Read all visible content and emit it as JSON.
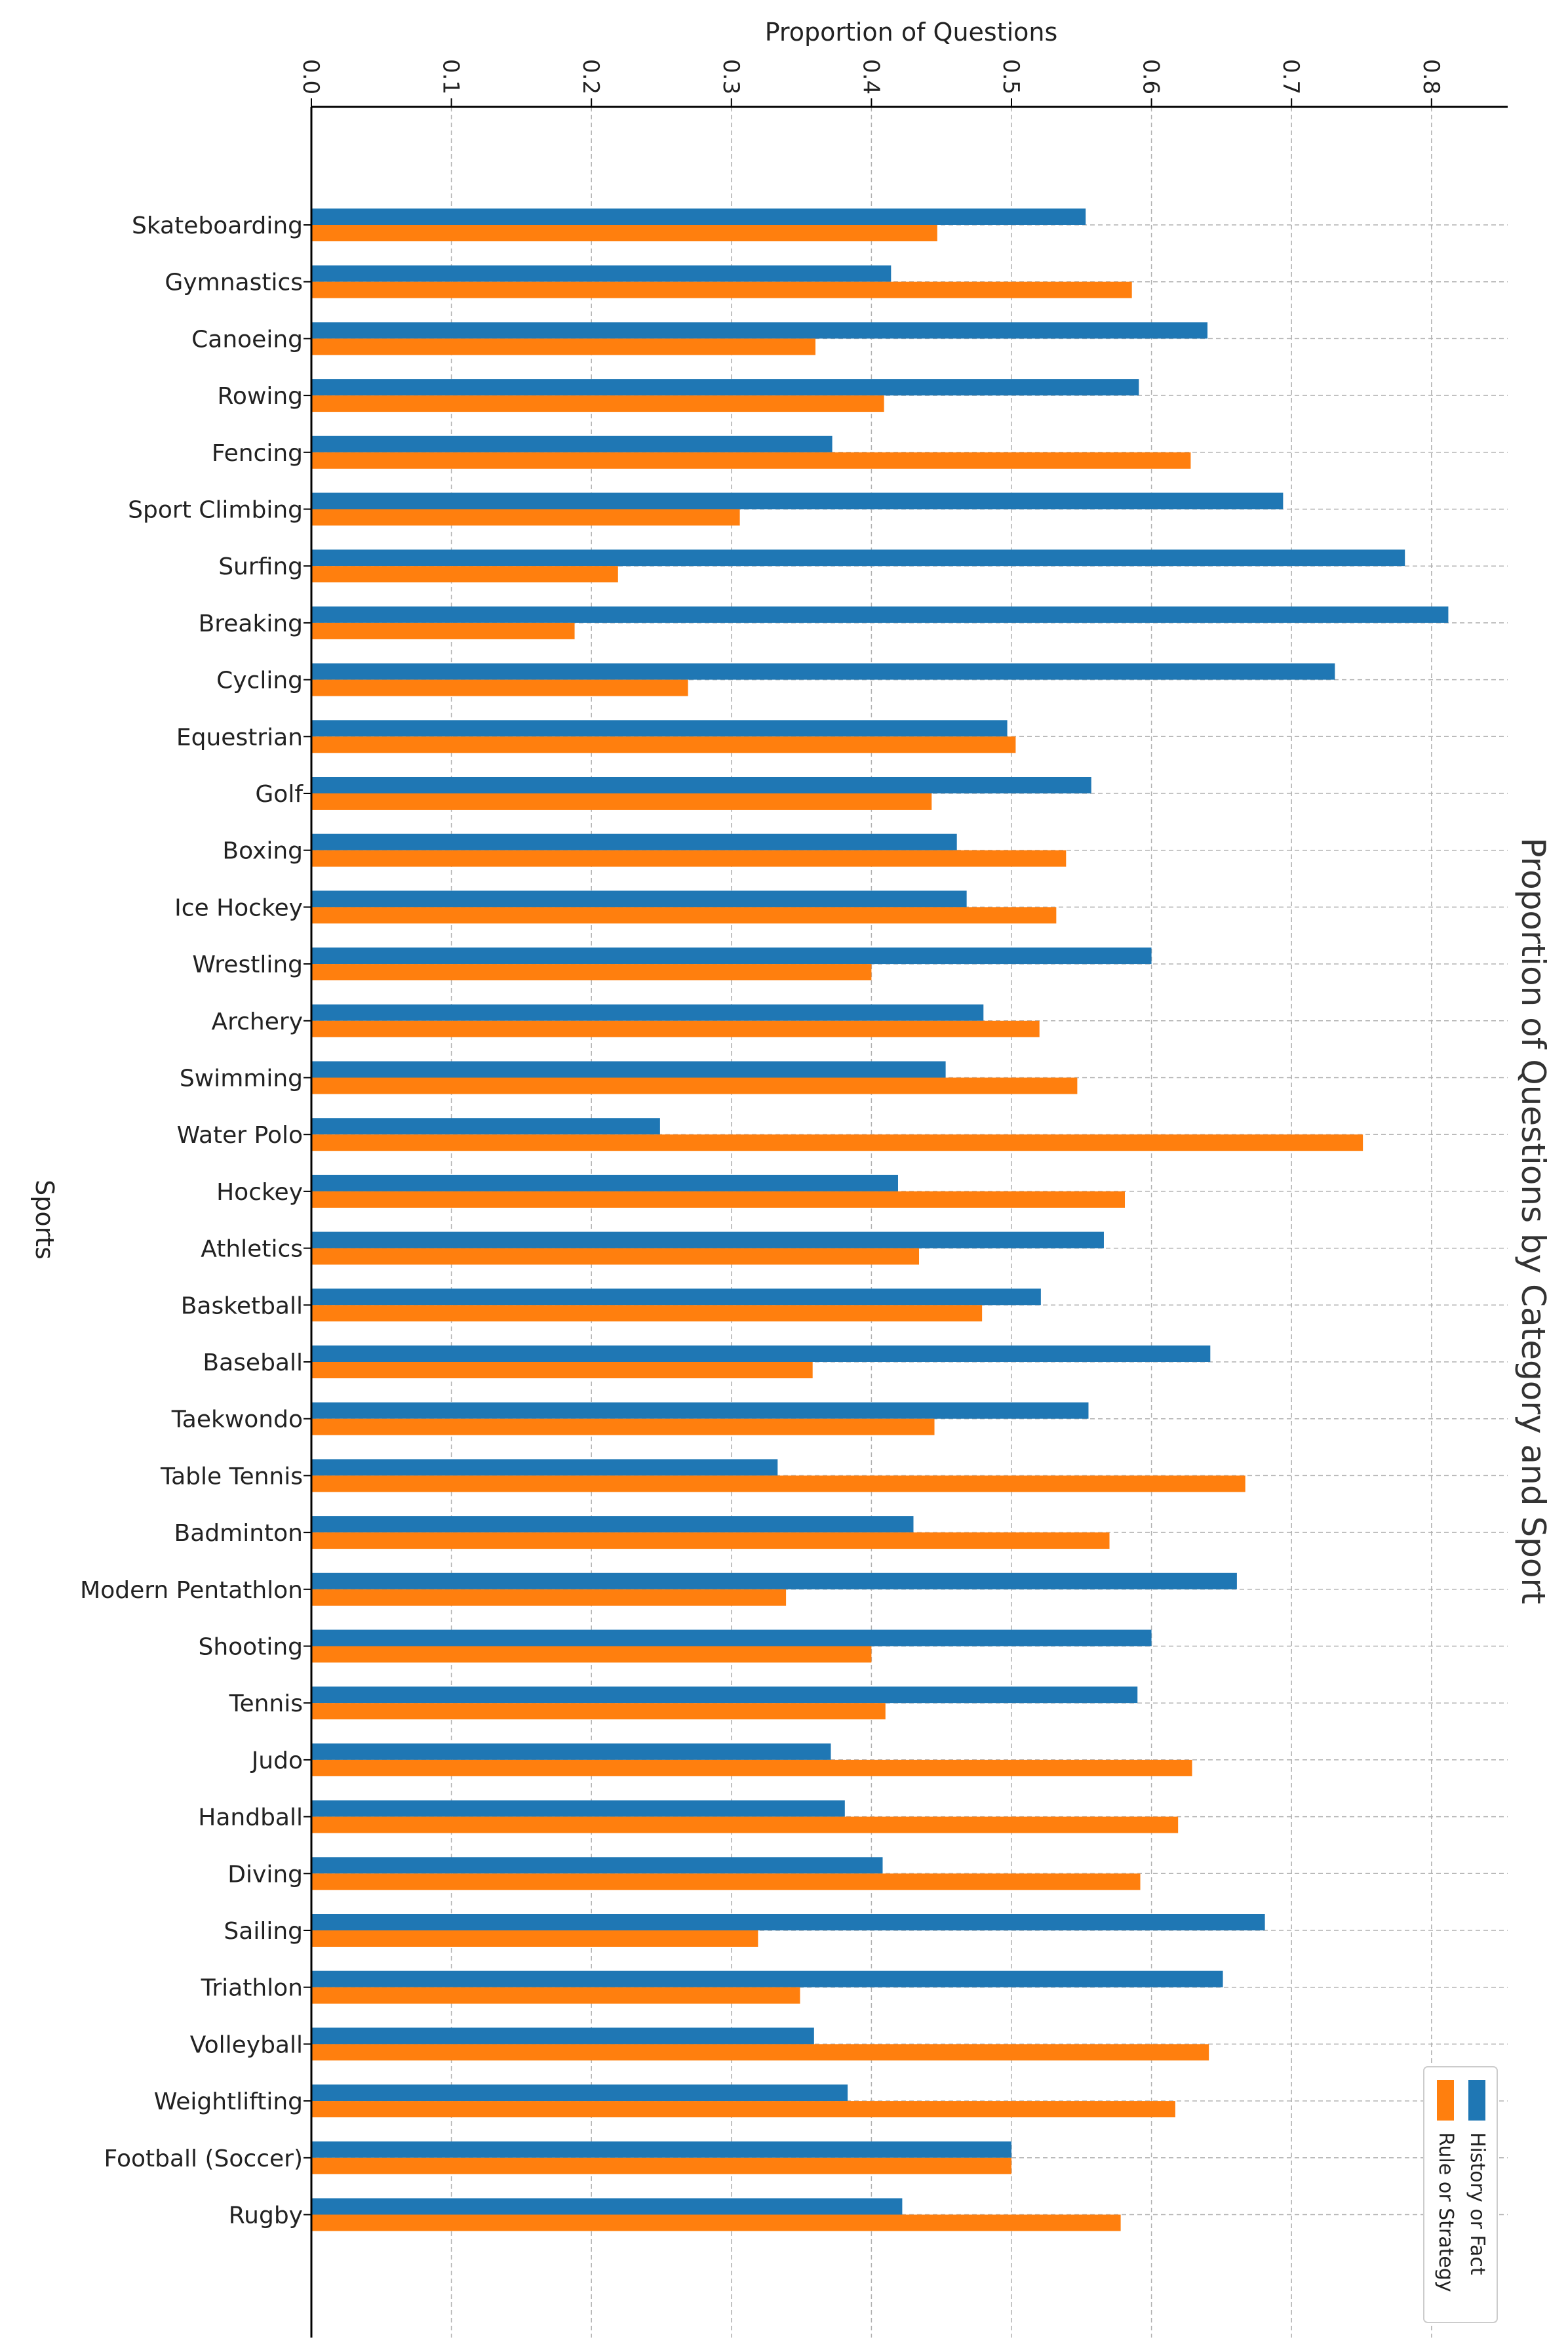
{
  "chart_data": {
    "type": "bar",
    "orientation": "horizontal",
    "title": "Proportion of Questions by Category and Sport",
    "xlabel": "Proportion of Questions",
    "ylabel": "Sports",
    "xlim": [
      0.0,
      0.85
    ],
    "xticks": [
      "0.0",
      "0.1",
      "0.2",
      "0.3",
      "0.4",
      "0.5",
      "0.6",
      "0.7",
      "0.8"
    ],
    "grid": true,
    "legend_position": "bottom-right",
    "categories": [
      "Skateboarding",
      "Gymnastics",
      "Canoeing",
      "Rowing",
      "Fencing",
      "Sport Climbing",
      "Surfing",
      "Breaking",
      "Cycling",
      "Equestrian",
      "Golf",
      "Boxing",
      "Ice Hockey",
      "Wrestling",
      "Archery",
      "Swimming",
      "Water Polo",
      "Hockey",
      "Athletics",
      "Basketball",
      "Baseball",
      "Taekwondo",
      "Table Tennis",
      "Badminton",
      "Modern Pentathlon",
      "Shooting",
      "Tennis",
      "Judo",
      "Handball",
      "Diving",
      "Sailing",
      "Triathlon",
      "Volleyball",
      "Weightlifting",
      "Football (Soccer)",
      "Rugby"
    ],
    "series": [
      {
        "name": "History or Fact",
        "color": "#1f77b4",
        "values": [
          0.553,
          0.414,
          0.64,
          0.591,
          0.372,
          0.694,
          0.781,
          0.812,
          0.731,
          0.497,
          0.557,
          0.461,
          0.468,
          0.6,
          0.48,
          0.453,
          0.249,
          0.419,
          0.566,
          0.521,
          0.642,
          0.555,
          0.333,
          0.43,
          0.661,
          0.6,
          0.59,
          0.371,
          0.381,
          0.408,
          0.681,
          0.651,
          0.359,
          0.383,
          0.5,
          0.422
        ]
      },
      {
        "name": "Rule or Strategy",
        "color": "#ff7f0e",
        "values": [
          0.447,
          0.586,
          0.36,
          0.409,
          0.628,
          0.306,
          0.219,
          0.188,
          0.269,
          0.503,
          0.443,
          0.539,
          0.532,
          0.4,
          0.52,
          0.547,
          0.751,
          0.581,
          0.434,
          0.479,
          0.358,
          0.445,
          0.667,
          0.57,
          0.339,
          0.4,
          0.41,
          0.629,
          0.619,
          0.592,
          0.319,
          0.349,
          0.641,
          0.617,
          0.5,
          0.578
        ]
      }
    ]
  }
}
